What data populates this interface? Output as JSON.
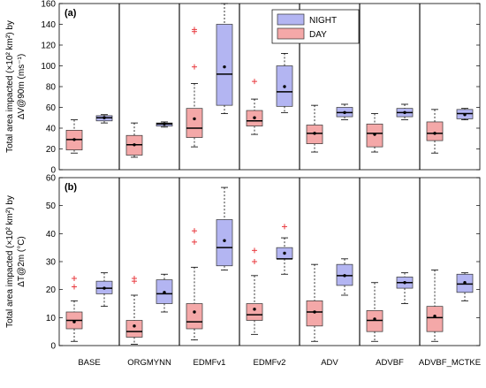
{
  "chart_data": [
    {
      "type": "box",
      "panel_label": "(a)",
      "ylabel_line1": "Total area impacted (×10² km²) by",
      "ylabel_line2": "ΔV@90m (ms⁻¹)",
      "ylim": [
        0,
        160
      ],
      "yticks": [
        0,
        20,
        40,
        60,
        80,
        100,
        120,
        140,
        160
      ],
      "legend": {
        "position": "top-right",
        "entries": [
          "NIGHT",
          "DAY"
        ]
      },
      "categories": [
        "BASE",
        "ORGMYNN",
        "EDMFv1",
        "EDMFv2",
        "ADV",
        "ADVBF",
        "ADVBF_MCTKE"
      ],
      "series": [
        {
          "name": "DAY",
          "boxes": [
            {
              "min": 16,
              "q1": 19,
              "median": 29,
              "q3": 38,
              "max": 48,
              "mean": 29,
              "outliers": []
            },
            {
              "min": 12,
              "q1": 14,
              "median": 24,
              "q3": 33,
              "max": 45,
              "mean": 24,
              "outliers": []
            },
            {
              "min": 22,
              "q1": 31,
              "median": 40,
              "q3": 59,
              "max": 83,
              "mean": 49,
              "outliers": [
                99,
                133,
                135
              ]
            },
            {
              "min": 34,
              "q1": 42,
              "median": 47,
              "q3": 57,
              "max": 68,
              "mean": 50,
              "outliers": [
                85
              ]
            },
            {
              "min": 17,
              "q1": 25,
              "median": 35,
              "q3": 43,
              "max": 62,
              "mean": 35,
              "outliers": []
            },
            {
              "min": 17,
              "q1": 22,
              "median": 35,
              "q3": 44,
              "max": 54,
              "mean": 34,
              "outliers": []
            },
            {
              "min": 16,
              "q1": 28,
              "median": 35,
              "q3": 46,
              "max": 58,
              "mean": 35,
              "outliers": []
            }
          ]
        },
        {
          "name": "NIGHT",
          "boxes": [
            {
              "min": 45,
              "q1": 47,
              "median": 50,
              "q3": 52,
              "max": 53,
              "mean": 50,
              "outliers": []
            },
            {
              "min": 41,
              "q1": 42,
              "median": 44,
              "q3": 45,
              "max": 46,
              "mean": 44,
              "outliers": []
            },
            {
              "min": 54,
              "q1": 62,
              "median": 92,
              "q3": 140,
              "max": 160,
              "mean": 99,
              "outliers": []
            },
            {
              "min": 55,
              "q1": 61,
              "median": 75,
              "q3": 100,
              "max": 112,
              "mean": 80,
              "outliers": []
            },
            {
              "min": 48,
              "q1": 51,
              "median": 55,
              "q3": 60,
              "max": 63,
              "mean": 55,
              "outliers": []
            },
            {
              "min": 48,
              "q1": 51,
              "median": 55,
              "q3": 59,
              "max": 63,
              "mean": 55,
              "outliers": []
            },
            {
              "min": 48,
              "q1": 49,
              "median": 54,
              "q3": 58,
              "max": 59,
              "mean": 53,
              "outliers": []
            }
          ]
        }
      ]
    },
    {
      "type": "box",
      "panel_label": "(b)",
      "ylabel_line1": "Total area impacted (×10² km²) by",
      "ylabel_line2": "ΔT@2m (°C)",
      "ylim": [
        0,
        60
      ],
      "yticks": [
        0,
        10,
        20,
        30,
        40,
        50,
        60
      ],
      "categories": [
        "BASE",
        "ORGMYNN",
        "EDMFv1",
        "EDMFv2",
        "ADV",
        "ADVBF",
        "ADVBF_MCTKE"
      ],
      "series": [
        {
          "name": "DAY",
          "boxes": [
            {
              "min": 1.5,
              "q1": 6,
              "median": 9,
              "q3": 12,
              "max": 16,
              "mean": 8.5,
              "outliers": [
                21,
                24
              ]
            },
            {
              "min": 0.5,
              "q1": 3,
              "median": 5,
              "q3": 9,
              "max": 18,
              "mean": 7,
              "outliers": [
                23,
                24
              ]
            },
            {
              "min": 2,
              "q1": 6,
              "median": 8.5,
              "q3": 15,
              "max": 28,
              "mean": 12,
              "outliers": [
                37,
                41
              ]
            },
            {
              "min": 4,
              "q1": 9,
              "median": 11,
              "q3": 15,
              "max": 25,
              "mean": 13,
              "outliers": [
                30,
                34
              ]
            },
            {
              "min": 1.5,
              "q1": 7,
              "median": 12,
              "q3": 16,
              "max": 29,
              "mean": 12,
              "outliers": []
            },
            {
              "min": 1.5,
              "q1": 5,
              "median": 9,
              "q3": 12.5,
              "max": 22.5,
              "mean": 9.5,
              "outliers": []
            },
            {
              "min": 1.5,
              "q1": 5,
              "median": 10,
              "q3": 14,
              "max": 27,
              "mean": 10.5,
              "outliers": []
            }
          ]
        },
        {
          "name": "NIGHT",
          "boxes": [
            {
              "min": 14,
              "q1": 18.5,
              "median": 20.5,
              "q3": 23,
              "max": 26,
              "mean": 20.5,
              "outliers": []
            },
            {
              "min": 12,
              "q1": 15,
              "median": 18.5,
              "q3": 23.5,
              "max": 25.5,
              "mean": 19,
              "outliers": []
            },
            {
              "min": 27,
              "q1": 28.5,
              "median": 35,
              "q3": 45,
              "max": 56.5,
              "mean": 37.5,
              "outliers": []
            },
            {
              "min": 25.5,
              "q1": 31,
              "median": 31,
              "q3": 35,
              "max": 38.5,
              "mean": 33,
              "outliers": [
                42.5
              ]
            },
            {
              "min": 18,
              "q1": 21.5,
              "median": 25,
              "q3": 29,
              "max": 31,
              "mean": 25,
              "outliers": []
            },
            {
              "min": 15,
              "q1": 20.5,
              "median": 22.5,
              "q3": 24.5,
              "max": 26,
              "mean": 22.5,
              "outliers": []
            },
            {
              "min": 16,
              "q1": 19,
              "median": 22,
              "q3": 25.5,
              "max": 26,
              "mean": 22.5,
              "outliers": []
            }
          ]
        }
      ]
    }
  ],
  "colors": {
    "DAY_fill": "#f4a8a8",
    "NIGHT_fill": "#b3b5f2",
    "outlier": "#e8383d",
    "median": "#000000"
  }
}
